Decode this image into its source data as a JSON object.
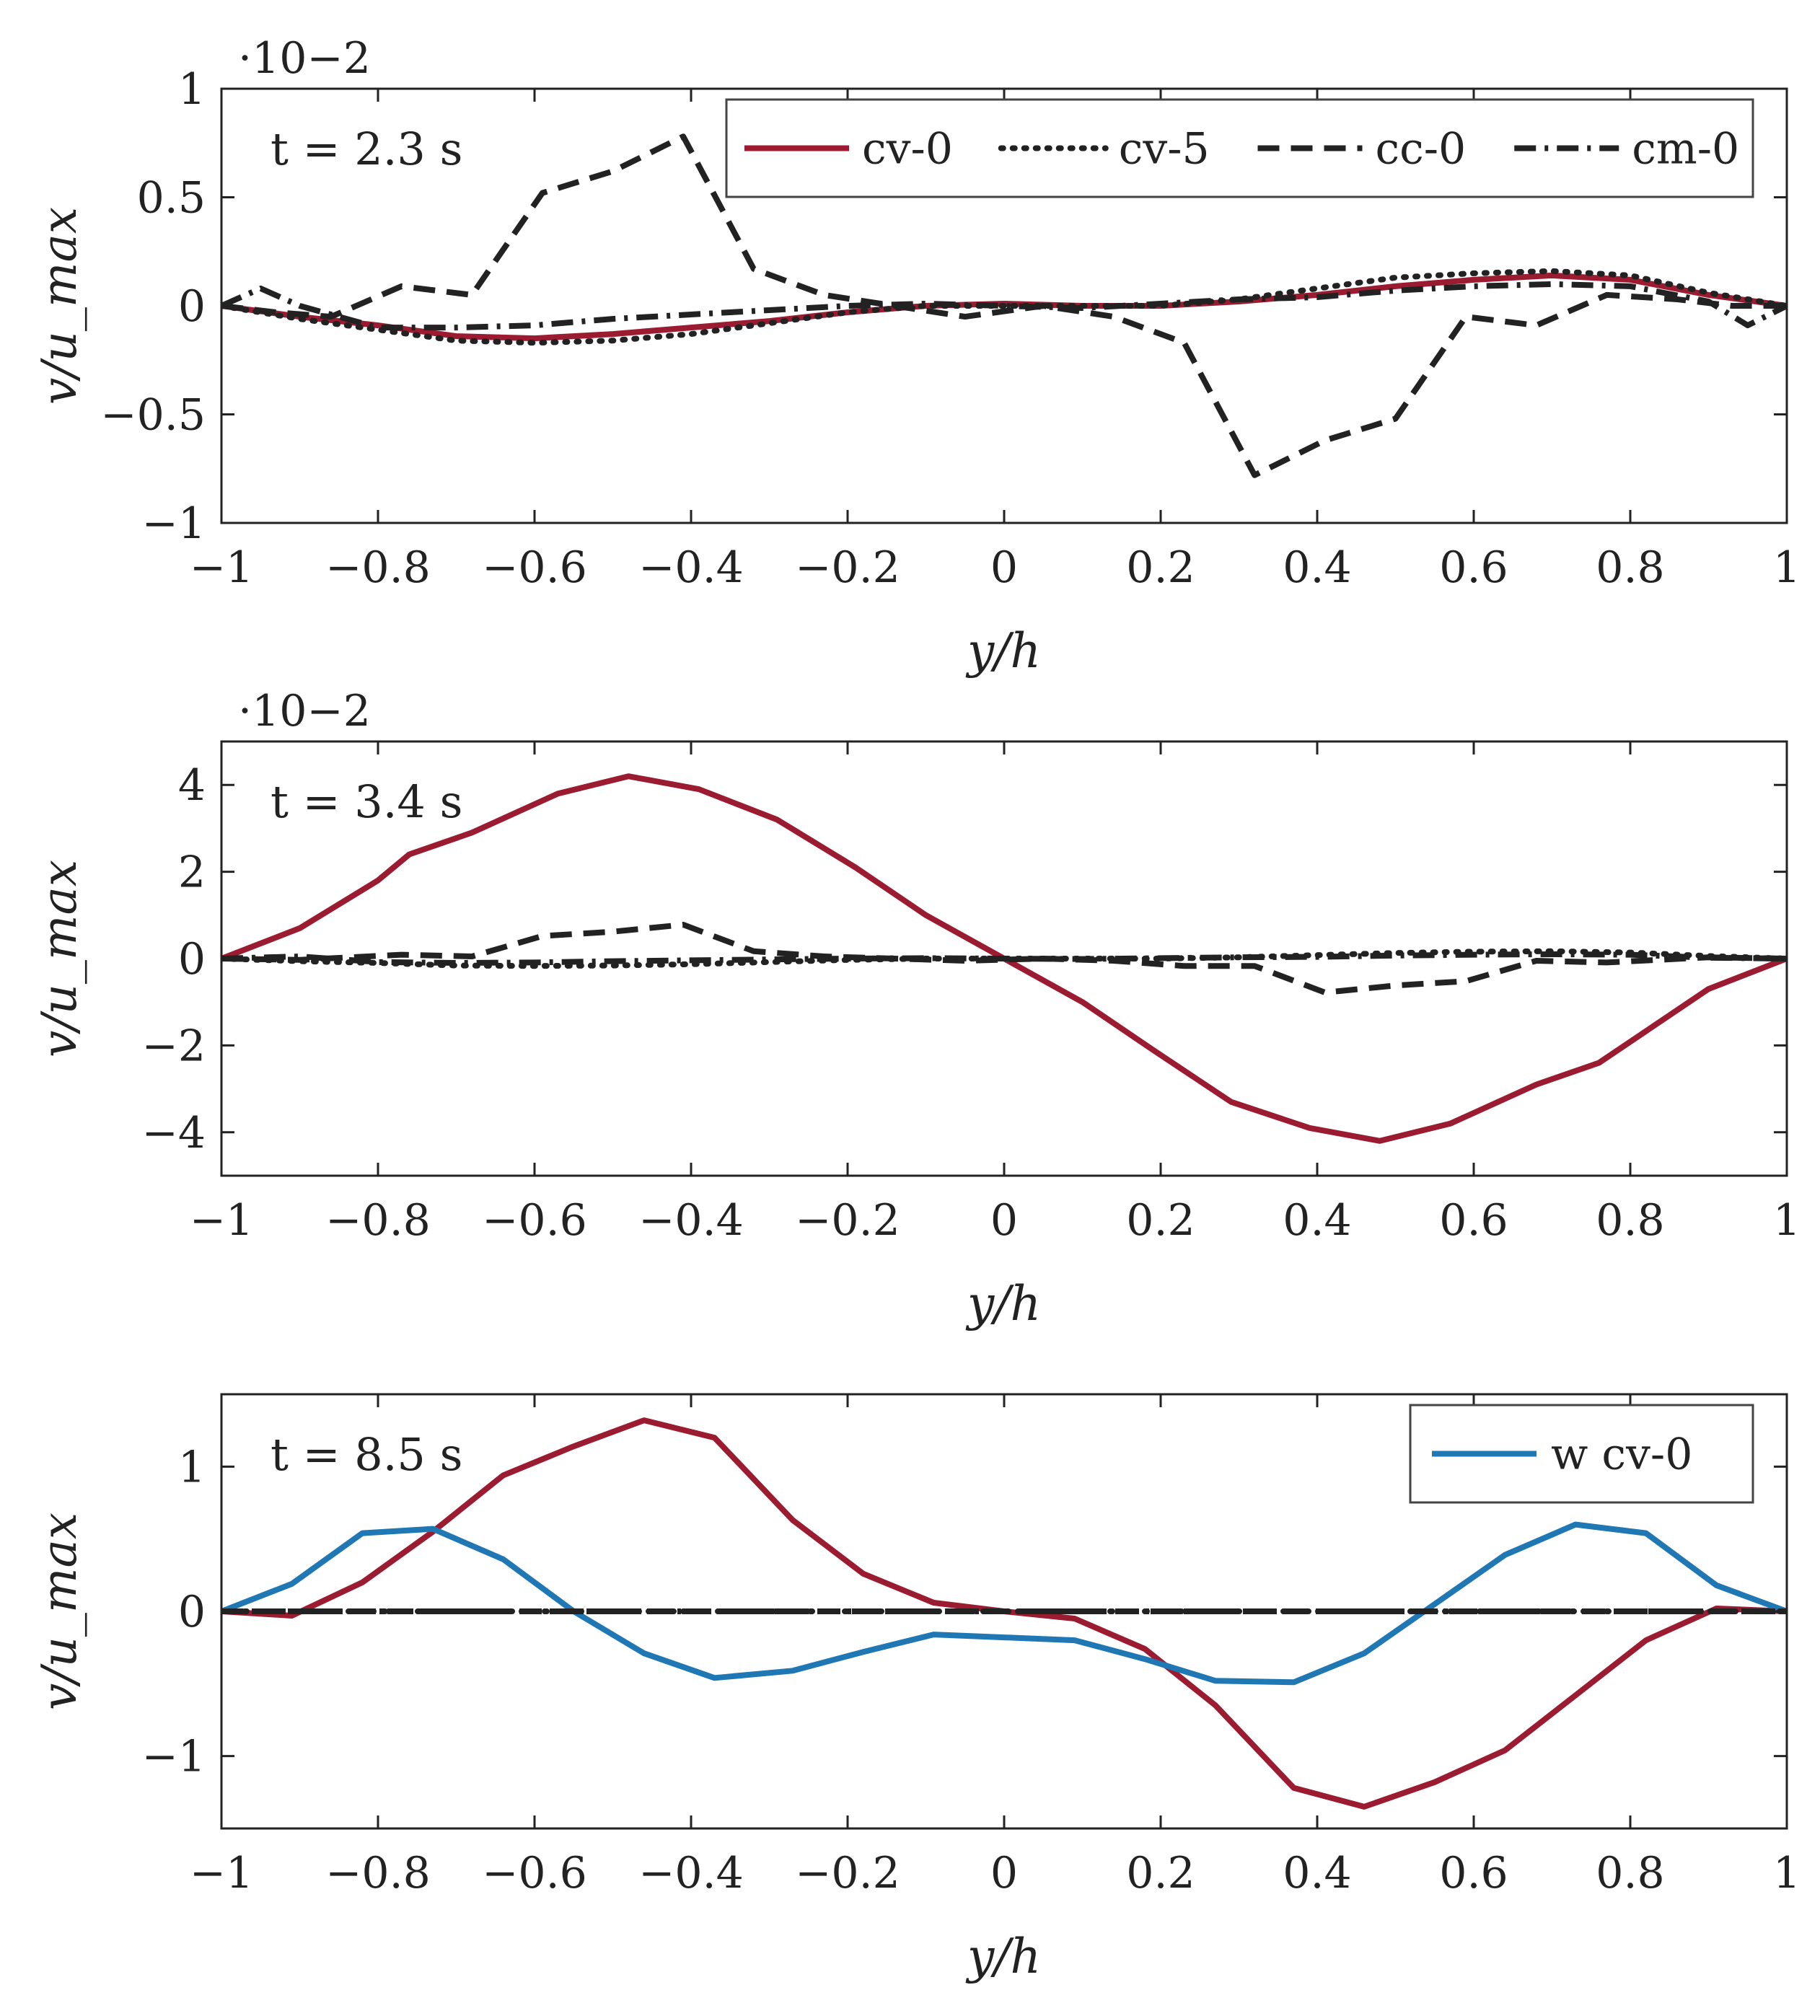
{
  "figure_label": "Wall-normal velocity profiles",
  "chart_data": [
    {
      "type": "line",
      "panel": "t-2.3",
      "annotation": "t = 2.3 s",
      "scale_label": "·10−2",
      "xlabel": "y/h",
      "ylabel": "v/u_max",
      "xlim": [
        -1,
        1
      ],
      "ylim": [
        -1,
        1
      ],
      "xticks": [
        -1,
        -0.8,
        -0.6,
        -0.4,
        -0.2,
        0,
        0.2,
        0.4,
        0.6,
        0.8,
        1
      ],
      "xtick_labels": [
        "−1",
        "−0.8",
        "−0.6",
        "−0.4",
        "−0.2",
        "0",
        "0.2",
        "0.4",
        "0.6",
        "0.8",
        "1"
      ],
      "yticks": [
        -1,
        -0.5,
        0,
        0.5,
        1
      ],
      "ytick_labels": [
        "−1",
        "−0.5",
        "0",
        "0.5",
        "1"
      ],
      "legend": {
        "position": "top-right",
        "entries": [
          "cv-0",
          "cv-5",
          "cc-0",
          "cm-0"
        ]
      },
      "series": [
        {
          "name": "cv-0",
          "style": "solid",
          "color": "#9B1B30",
          "x": [
            -1,
            -0.9,
            -0.8,
            -0.7,
            -0.6,
            -0.5,
            -0.4,
            -0.3,
            -0.2,
            -0.1,
            0,
            0.1,
            0.2,
            0.3,
            0.4,
            0.5,
            0.6,
            0.7,
            0.8,
            0.9,
            1
          ],
          "y": [
            0,
            -0.05,
            -0.09,
            -0.14,
            -0.15,
            -0.13,
            -0.1,
            -0.07,
            -0.03,
            0,
            0.01,
            0,
            0,
            0.02,
            0.05,
            0.09,
            0.12,
            0.14,
            0.12,
            0.05,
            0
          ]
        },
        {
          "name": "cv-5",
          "style": "dotted",
          "color": "#222222",
          "x": [
            -1,
            -0.9,
            -0.8,
            -0.7,
            -0.6,
            -0.5,
            -0.4,
            -0.3,
            -0.2,
            -0.1,
            0,
            0.1,
            0.2,
            0.3,
            0.4,
            0.5,
            0.6,
            0.7,
            0.8,
            0.9,
            1
          ],
          "y": [
            0,
            -0.06,
            -0.11,
            -0.16,
            -0.17,
            -0.16,
            -0.13,
            -0.08,
            -0.03,
            0,
            0,
            0,
            0,
            0.03,
            0.08,
            0.13,
            0.15,
            0.16,
            0.14,
            0.06,
            0
          ]
        },
        {
          "name": "cc-0",
          "style": "dashed",
          "color": "#222222",
          "x": [
            -1,
            -0.93,
            -0.86,
            -0.77,
            -0.68,
            -0.59,
            -0.5,
            -0.41,
            -0.32,
            -0.23,
            -0.14,
            -0.05,
            0.05,
            0.14,
            0.23,
            0.32,
            0.41,
            0.5,
            0.59,
            0.68,
            0.77,
            0.86,
            0.93,
            1
          ],
          "y": [
            0,
            -0.03,
            -0.05,
            0.09,
            0.05,
            0.52,
            0.62,
            0.78,
            0.17,
            0.05,
            0,
            -0.05,
            0,
            -0.05,
            -0.17,
            -0.78,
            -0.62,
            -0.52,
            -0.05,
            -0.09,
            0.05,
            0.03,
            0,
            0
          ]
        },
        {
          "name": "cm-0",
          "style": "dashdot",
          "color": "#222222",
          "x": [
            -1,
            -0.95,
            -0.9,
            -0.8,
            -0.7,
            -0.6,
            -0.5,
            -0.4,
            -0.3,
            -0.2,
            -0.1,
            0,
            0.1,
            0.2,
            0.3,
            0.4,
            0.5,
            0.6,
            0.7,
            0.8,
            0.9,
            0.95,
            1
          ],
          "y": [
            0,
            0.08,
            0,
            -0.1,
            -0.1,
            -0.09,
            -0.06,
            -0.04,
            -0.02,
            0,
            0.01,
            0,
            -0.01,
            0.01,
            0.03,
            0.04,
            0.07,
            0.09,
            0.1,
            0.09,
            0.02,
            -0.09,
            0
          ]
        }
      ]
    },
    {
      "type": "line",
      "panel": "t-3.4",
      "annotation": "t = 3.4 s",
      "scale_label": "·10−2",
      "xlabel": "y/h",
      "ylabel": "v/u_max",
      "xlim": [
        -1,
        1
      ],
      "ylim": [
        -5,
        5
      ],
      "xticks": [
        -1,
        -0.8,
        -0.6,
        -0.4,
        -0.2,
        0,
        0.2,
        0.4,
        0.6,
        0.8,
        1
      ],
      "xtick_labels": [
        "−1",
        "−0.8",
        "−0.6",
        "−0.4",
        "−0.2",
        "0",
        "0.2",
        "0.4",
        "0.6",
        "0.8",
        "1"
      ],
      "yticks": [
        -4,
        -2,
        0,
        2,
        4
      ],
      "ytick_labels": [
        "−4",
        "−2",
        "0",
        "2",
        "4"
      ],
      "series": [
        {
          "name": "cv-0",
          "style": "solid",
          "color": "#9B1B30",
          "x": [
            -1,
            -0.9,
            -0.8,
            -0.76,
            -0.68,
            -0.57,
            -0.48,
            -0.39,
            -0.29,
            -0.19,
            -0.1,
            0,
            0.1,
            0.19,
            0.29,
            0.39,
            0.48,
            0.57,
            0.68,
            0.76,
            0.9,
            1
          ],
          "y": [
            0,
            0.7,
            1.8,
            2.4,
            2.9,
            3.8,
            4.2,
            3.9,
            3.2,
            2.1,
            1,
            0,
            -1,
            -2.1,
            -3.3,
            -3.9,
            -4.2,
            -3.8,
            -2.9,
            -2.4,
            -0.7,
            0
          ]
        },
        {
          "name": "cv-5",
          "style": "dotted",
          "color": "#222222",
          "x": [
            -1,
            -0.9,
            -0.8,
            -0.7,
            -0.6,
            -0.5,
            -0.4,
            -0.3,
            -0.2,
            -0.1,
            0,
            0.1,
            0.2,
            0.3,
            0.4,
            0.5,
            0.6,
            0.7,
            0.8,
            0.9,
            1
          ],
          "y": [
            0,
            -0.06,
            -0.1,
            -0.16,
            -0.17,
            -0.16,
            -0.13,
            -0.08,
            -0.03,
            0,
            0,
            0,
            0,
            0.03,
            0.08,
            0.13,
            0.16,
            0.17,
            0.14,
            0.06,
            0
          ]
        },
        {
          "name": "cc-0",
          "style": "dashed",
          "color": "#222222",
          "x": [
            -1,
            -0.9,
            -0.77,
            -0.68,
            -0.59,
            -0.5,
            -0.41,
            -0.32,
            -0.23,
            -0.14,
            -0.05,
            0.05,
            0.14,
            0.23,
            0.32,
            0.41,
            0.5,
            0.59,
            0.68,
            0.77,
            0.9,
            1
          ],
          "y": [
            0,
            -0.03,
            0.09,
            0.05,
            0.52,
            0.62,
            0.78,
            0.17,
            0.05,
            0,
            -0.05,
            0,
            -0.05,
            -0.17,
            -0.17,
            -0.78,
            -0.62,
            -0.52,
            -0.05,
            -0.09,
            0.03,
            0
          ]
        },
        {
          "name": "cm-0",
          "style": "dashdot",
          "color": "#222222",
          "x": [
            -1,
            -0.9,
            -0.8,
            -0.7,
            -0.6,
            -0.5,
            -0.4,
            -0.3,
            -0.2,
            -0.1,
            0,
            0.1,
            0.2,
            0.3,
            0.4,
            0.5,
            0.6,
            0.7,
            0.8,
            0.9,
            1
          ],
          "y": [
            0,
            0.05,
            -0.08,
            -0.1,
            -0.09,
            -0.06,
            -0.04,
            -0.02,
            0,
            0.01,
            0,
            -0.01,
            0.01,
            0.03,
            0.04,
            0.07,
            0.09,
            0.1,
            0.09,
            0.02,
            0
          ]
        }
      ]
    },
    {
      "type": "line",
      "panel": "t-8.5",
      "annotation": "t = 8.5 s",
      "scale_label": "",
      "xlabel": "y/h",
      "ylabel": "v/u_max",
      "xlim": [
        -1,
        1
      ],
      "ylim": [
        -1.5,
        1.5
      ],
      "xticks": [
        -1,
        -0.8,
        -0.6,
        -0.4,
        -0.2,
        0,
        0.2,
        0.4,
        0.6,
        0.8,
        1
      ],
      "xtick_labels": [
        "−1",
        "−0.8",
        "−0.6",
        "−0.4",
        "−0.2",
        "0",
        "0.2",
        "0.4",
        "0.6",
        "0.8",
        "1"
      ],
      "yticks": [
        -1,
        0,
        1
      ],
      "ytick_labels": [
        "−1",
        "0",
        "1"
      ],
      "legend": {
        "position": "top-right",
        "entries": [
          "w cv-0"
        ]
      },
      "series": [
        {
          "name": "cv-0",
          "style": "solid",
          "color": "#9B1B30",
          "x": [
            -1,
            -0.91,
            -0.82,
            -0.73,
            -0.64,
            -0.55,
            -0.46,
            -0.37,
            -0.27,
            -0.18,
            -0.09,
            0,
            0.09,
            0.18,
            0.27,
            0.37,
            0.46,
            0.55,
            0.64,
            0.73,
            0.82,
            0.91,
            1
          ],
          "y": [
            0,
            -0.03,
            0.2,
            0.55,
            0.94,
            1.14,
            1.32,
            1.2,
            0.63,
            0.26,
            0.06,
            0,
            -0.05,
            -0.26,
            -0.65,
            -1.22,
            -1.35,
            -1.18,
            -0.96,
            -0.58,
            -0.2,
            0.02,
            0
          ]
        },
        {
          "name": "w cv-0",
          "style": "solid",
          "color": "#1F77B4",
          "x": [
            -1,
            -0.91,
            -0.82,
            -0.73,
            -0.64,
            -0.55,
            -0.46,
            -0.37,
            -0.27,
            -0.18,
            -0.09,
            0,
            0.09,
            0.18,
            0.27,
            0.37,
            0.46,
            0.55,
            0.64,
            0.73,
            0.82,
            0.91,
            1
          ],
          "y": [
            0,
            0.19,
            0.54,
            0.57,
            0.36,
            0,
            -0.29,
            -0.46,
            -0.41,
            -0.28,
            -0.16,
            -0.18,
            -0.2,
            -0.33,
            -0.48,
            -0.49,
            -0.29,
            0.05,
            0.39,
            0.6,
            0.54,
            0.18,
            0
          ]
        },
        {
          "name": "cv-5",
          "style": "dotted",
          "color": "#222222",
          "x": [
            -1,
            -0.5,
            0,
            0.5,
            1
          ],
          "y": [
            0,
            0,
            0,
            0,
            0
          ]
        },
        {
          "name": "cc-0",
          "style": "dashed",
          "color": "#222222",
          "x": [
            -1,
            -0.5,
            0,
            0.5,
            1
          ],
          "y": [
            0,
            0,
            0,
            0,
            0
          ]
        },
        {
          "name": "cm-0",
          "style": "dashdot",
          "color": "#222222",
          "x": [
            -1,
            -0.5,
            0,
            0.5,
            1
          ],
          "y": [
            0,
            0,
            0,
            0,
            0
          ]
        }
      ]
    }
  ]
}
